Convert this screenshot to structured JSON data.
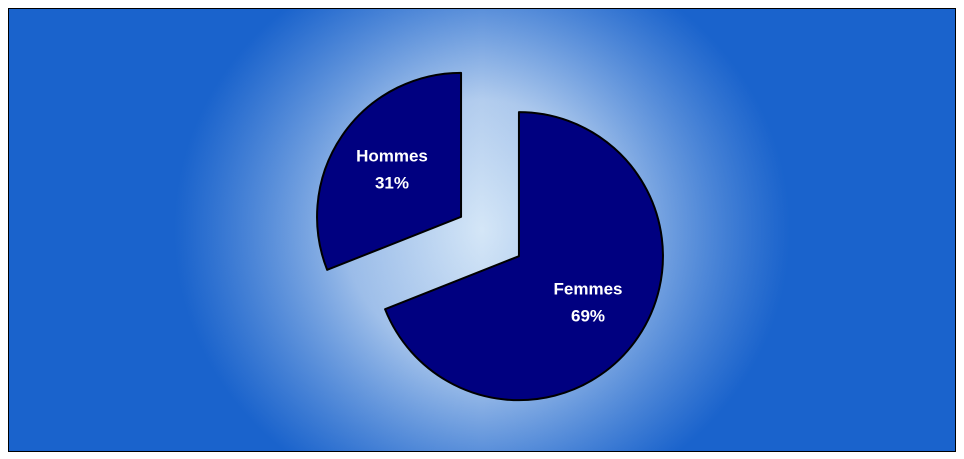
{
  "chart_data": {
    "type": "pie",
    "categories": [
      "Hommes",
      "Femmes"
    ],
    "values": [
      31,
      69
    ],
    "value_labels": [
      "31%",
      "69%"
    ],
    "colors": [
      "#000080",
      "#000080"
    ],
    "start": "top",
    "direction": "clockwise",
    "exploded": true
  }
}
